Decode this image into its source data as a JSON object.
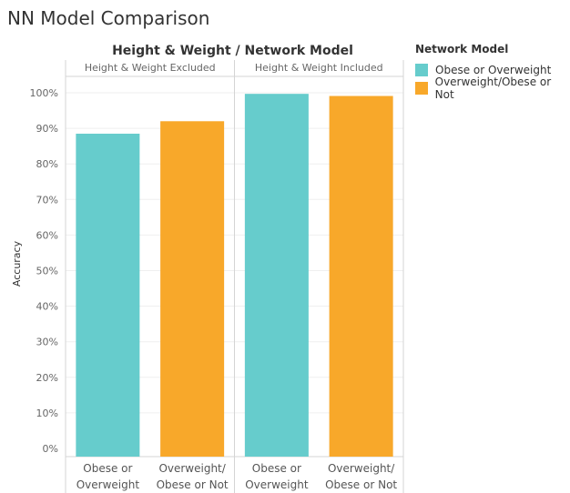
{
  "title": "NN Model Comparison",
  "colors": {
    "obese_or_overweight": "#66CCCC",
    "overweight_obese_or_not": "#F8A82A"
  },
  "chart_data": {
    "type": "bar",
    "title": "NN Model Comparison",
    "header": "Height & Weight  /  Network Model",
    "ylabel": "Accuracy",
    "ylim": [
      0,
      1.0
    ],
    "yticks": [
      "0%",
      "10%",
      "20%",
      "30%",
      "40%",
      "50%",
      "60%",
      "70%",
      "80%",
      "90%",
      "100%"
    ],
    "grid": true,
    "legend_position": "right",
    "panels": [
      {
        "name": "Height & Weight Excluded",
        "categories": [
          "Obese or Overweight",
          "Overweight/ Obese or Not"
        ],
        "category_lines": [
          [
            "Obese or",
            "Overweight"
          ],
          [
            "Overweight/",
            "Obese or Not"
          ]
        ],
        "values": [
          0.885,
          0.92
        ]
      },
      {
        "name": "Height & Weight Included",
        "categories": [
          "Obese or Overweight",
          "Overweight/ Obese or Not"
        ],
        "category_lines": [
          [
            "Obese or",
            "Overweight"
          ],
          [
            "Overweight/",
            "Obese or Not"
          ]
        ],
        "values": [
          0.997,
          0.991
        ]
      }
    ],
    "legend": {
      "title": "Network Model",
      "items": [
        {
          "label": "Obese or Overweight",
          "color": "#66CCCC"
        },
        {
          "label": "Overweight/Obese or Not",
          "color": "#F8A82A"
        }
      ]
    }
  }
}
